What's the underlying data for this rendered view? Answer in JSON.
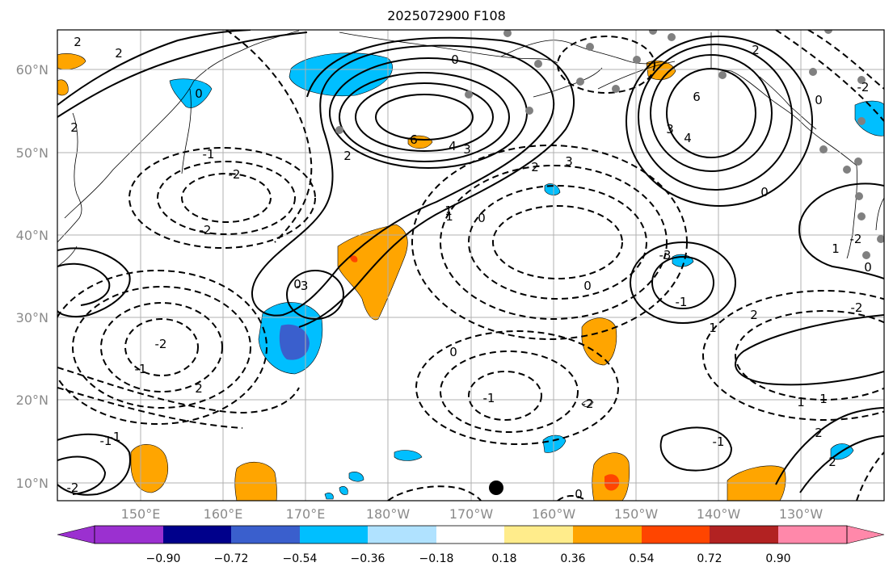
{
  "title": "2025072900 F108",
  "lat_labels": [
    "60°N",
    "50°N",
    "40°N",
    "30°N",
    "20°N",
    "10°N"
  ],
  "lon_labels": [
    "150°E",
    "160°E",
    "170°E",
    "180°W",
    "170°W",
    "160°W",
    "150°W",
    "140°W",
    "130°W"
  ],
  "colorbar": {
    "labels": [
      "−0.90",
      "−0.72",
      "−0.54",
      "−0.36",
      "−0.18",
      "0.18",
      "0.36",
      "0.54",
      "0.72",
      "0.90"
    ],
    "colors": [
      "#9b30d0",
      "#00008b",
      "#3a5fcd",
      "#00bfff",
      "#b0e2ff",
      "#ffffff",
      "#ffec8b",
      "#ffa500",
      "#ff4500",
      "#b22222",
      "#ff88aa"
    ]
  },
  "contour_labels": [
    "2",
    "2",
    "0",
    "2",
    "6",
    "3",
    "4",
    "2",
    "0",
    "-2",
    "-1",
    "-2",
    "1",
    "2",
    "0",
    "3",
    "6",
    "3",
    "4",
    "2",
    "0",
    "0",
    "-2",
    "-3",
    "-2",
    "-1",
    "2",
    "0",
    "-1",
    "-2",
    "1",
    "2",
    "-2",
    "-3",
    "-1",
    "0",
    "-1",
    "-2",
    "0",
    "1",
    "-2",
    "0",
    "1",
    "-1",
    "1",
    "2",
    "-1",
    "0",
    "2",
    "1"
  ]
}
